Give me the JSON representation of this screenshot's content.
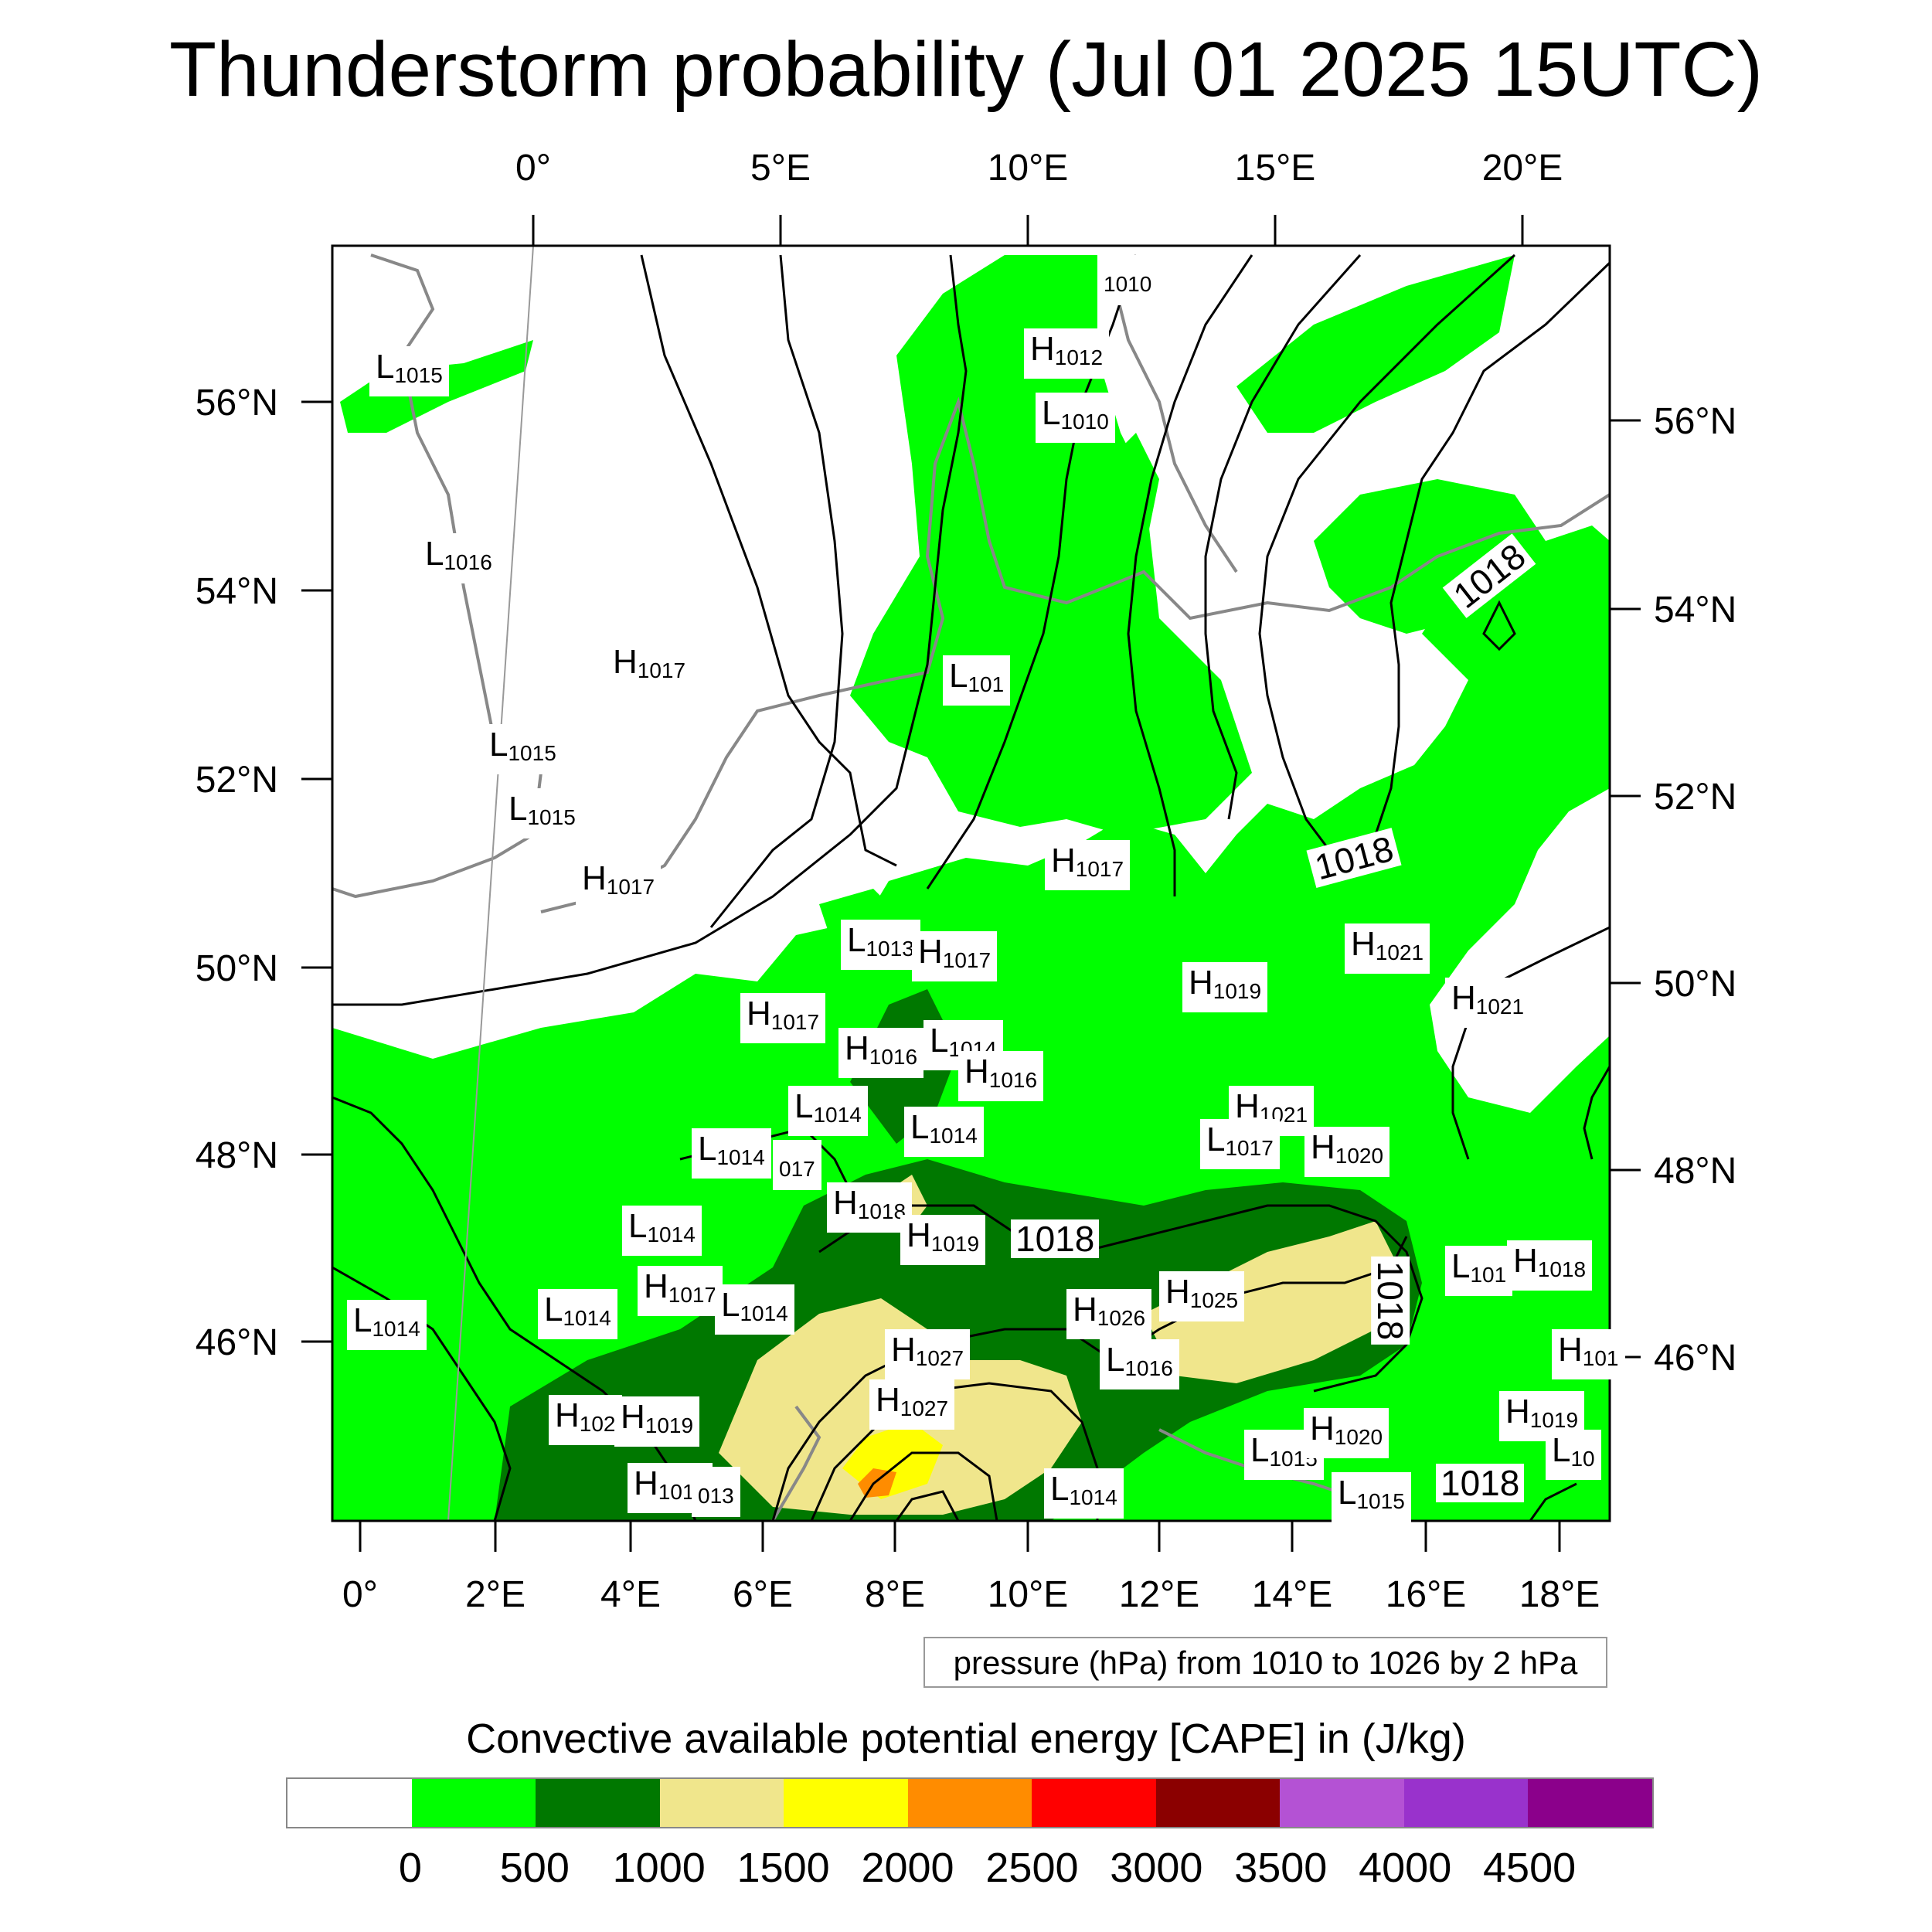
{
  "title": "Thunderstorm probability (Jul 01 2025 15UTC)",
  "top_lon_labels": [
    "0°",
    "5°E",
    "10°E",
    "15°E",
    "20°E"
  ],
  "bottom_lon_labels": [
    "0°",
    "2°E",
    "4°E",
    "6°E",
    "8°E",
    "10°E",
    "12°E",
    "14°E",
    "16°E",
    "18°E"
  ],
  "left_lat_labels": [
    "56°N",
    "54°N",
    "52°N",
    "50°N",
    "48°N",
    "46°N"
  ],
  "right_lat_labels": [
    "56°N",
    "54°N",
    "52°N",
    "50°N",
    "48°N",
    "46°N"
  ],
  "pressure_note": "pressure (hPa) from 1010 to 1026 by 2 hPa",
  "cape_label": "Convective available potential energy [CAPE] in (J/kg)",
  "colorbar": {
    "colors": [
      "#ffffff",
      "#00ff00",
      "#007800",
      "#f0e68c",
      "#ffff00",
      "#ff8c00",
      "#ff0000",
      "#8b0000",
      "#b452d4",
      "#9932cc",
      "#8b008b"
    ],
    "ticks": [
      "0",
      "500",
      "1000",
      "1500",
      "2000",
      "2500",
      "3000",
      "3500",
      "4000",
      "4500"
    ]
  },
  "pressure_centers": [
    {
      "type": "L",
      "value": "1015"
    },
    {
      "type": "L",
      "value": "1016"
    },
    {
      "type": "H",
      "value": "1017"
    },
    {
      "type": "L",
      "value": "1015"
    },
    {
      "type": "L",
      "value": "1015"
    },
    {
      "type": "H",
      "value": "1017"
    },
    {
      "type": "H",
      "value": "1012"
    },
    {
      "type": "L",
      "value": "1010"
    },
    {
      "type": "L",
      "value": "101"
    },
    {
      "type": "H",
      "value": "1017"
    },
    {
      "type": "L",
      "value": "1013"
    },
    {
      "type": "H",
      "value": "1017"
    },
    {
      "type": "H",
      "value": "1017"
    },
    {
      "type": "H",
      "value": "1016"
    },
    {
      "type": "L",
      "value": "1014"
    },
    {
      "type": "H",
      "value": "1016"
    },
    {
      "type": "L",
      "value": "1014"
    },
    {
      "type": "L",
      "value": "1014"
    },
    {
      "type": "L",
      "value": "1014"
    },
    {
      "type": "H",
      "value": "1018"
    },
    {
      "type": "H",
      "value": "1019"
    },
    {
      "type": "L",
      "value": "1014"
    },
    {
      "type": "H",
      "value": "1017"
    },
    {
      "type": "L",
      "value": "1014"
    },
    {
      "type": "L",
      "value": "1014"
    },
    {
      "type": "L",
      "value": "1014"
    },
    {
      "type": "H",
      "value": "1019"
    },
    {
      "type": "H",
      "value": "1021"
    },
    {
      "type": "H",
      "value": "1021"
    },
    {
      "type": "H",
      "value": "1021"
    },
    {
      "type": "L",
      "value": "1017"
    },
    {
      "type": "H",
      "value": "1020"
    },
    {
      "type": "H",
      "value": "1026"
    },
    {
      "type": "H",
      "value": "1025"
    },
    {
      "type": "H",
      "value": "1027"
    },
    {
      "type": "H",
      "value": "1027"
    },
    {
      "type": "L",
      "value": "1016"
    },
    {
      "type": "H",
      "value": "102"
    },
    {
      "type": "H",
      "value": "1019"
    },
    {
      "type": "H",
      "value": "1019"
    },
    {
      "type": "L",
      "value": "1014"
    },
    {
      "type": "L",
      "value": "1015"
    },
    {
      "type": "H",
      "value": "1020"
    },
    {
      "type": "L",
      "value": "1015"
    },
    {
      "type": "L",
      "value": "101"
    },
    {
      "type": "H",
      "value": "1018"
    },
    {
      "type": "H",
      "value": "1019"
    },
    {
      "type": "H",
      "value": "101"
    },
    {
      "type": "L",
      "value": "10"
    },
    {
      "type": "",
      "value": "013"
    },
    {
      "type": "",
      "value": "017"
    },
    {
      "type": "",
      "value": "1010"
    }
  ],
  "isobar_labels": [
    "1018",
    "1018",
    "1018",
    "1018",
    "1018"
  ]
}
